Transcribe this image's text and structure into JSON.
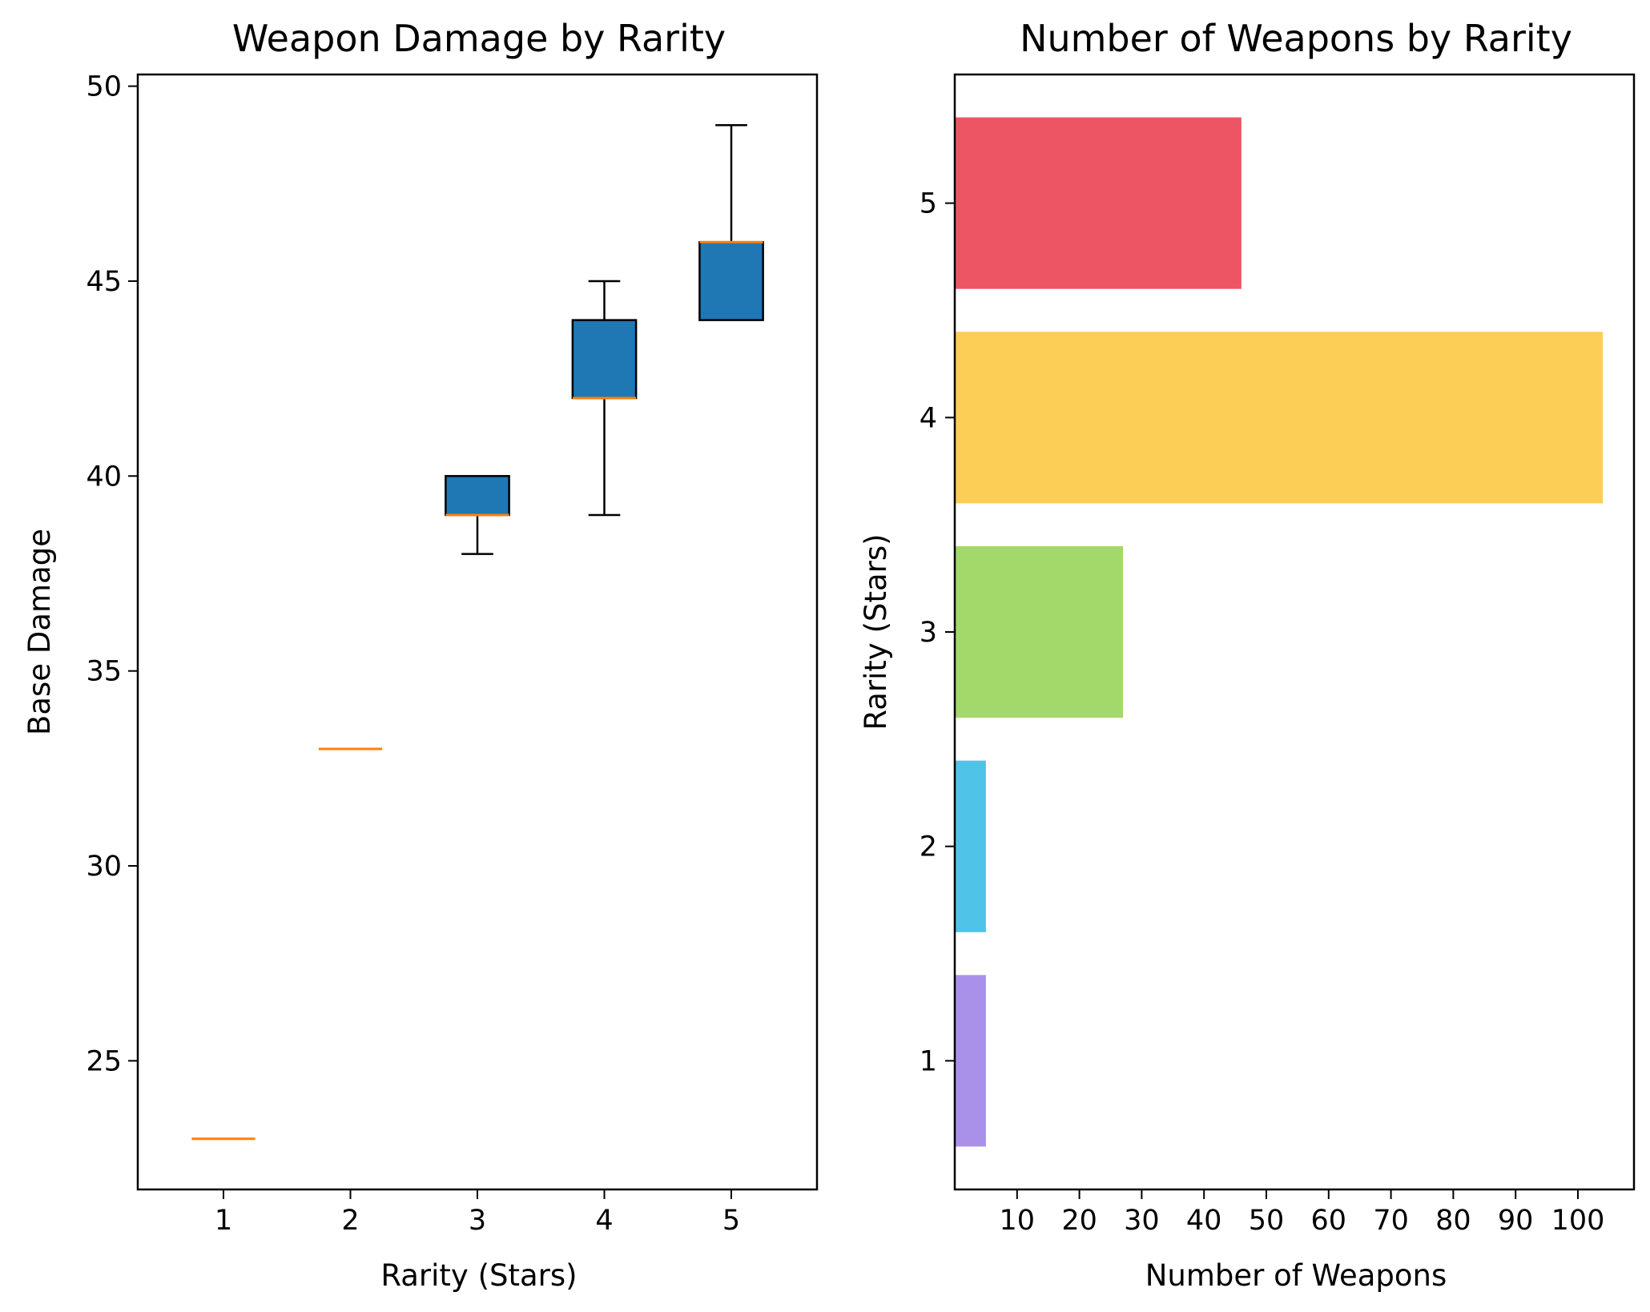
{
  "chart_data": [
    {
      "type": "box",
      "title": "Weapon Damage by Rarity",
      "xlabel": "Rarity (Stars)",
      "ylabel": "Base Damage",
      "categories": [
        "1",
        "2",
        "3",
        "4",
        "5"
      ],
      "ylim": [
        21.7,
        50.3
      ],
      "yticks": [
        25,
        30,
        35,
        40,
        45,
        50
      ],
      "grid": false,
      "box_color": "#1f77b4",
      "median_color": "#ff7f0e",
      "boxes": [
        {
          "category": "1",
          "whisker_low": 23,
          "q1": 23,
          "median": 23,
          "q3": 23,
          "whisker_high": 23
        },
        {
          "category": "2",
          "whisker_low": 33,
          "q1": 33,
          "median": 33,
          "q3": 33,
          "whisker_high": 33
        },
        {
          "category": "3",
          "whisker_low": 38,
          "q1": 39,
          "median": 39,
          "q3": 40,
          "whisker_high": 40
        },
        {
          "category": "4",
          "whisker_low": 39,
          "q1": 42,
          "median": 42,
          "q3": 44,
          "whisker_high": 45
        },
        {
          "category": "5",
          "whisker_low": 44,
          "q1": 44,
          "median": 46,
          "q3": 46,
          "whisker_high": 49
        }
      ]
    },
    {
      "type": "bar",
      "orientation": "horizontal",
      "title": "Number of Weapons by Rarity",
      "xlabel": "Number of Weapons",
      "ylabel": "Rarity (Stars)",
      "categories": [
        "1",
        "2",
        "3",
        "4",
        "5"
      ],
      "values": [
        5,
        5,
        27,
        104,
        46
      ],
      "colors": [
        "#a991ea",
        "#4fc3e8",
        "#a3d86a",
        "#fdce55",
        "#ed5565"
      ],
      "xlim": [
        0,
        109
      ],
      "xticks": [
        10,
        20,
        30,
        40,
        50,
        60,
        70,
        80,
        90,
        100
      ],
      "grid": false
    }
  ]
}
